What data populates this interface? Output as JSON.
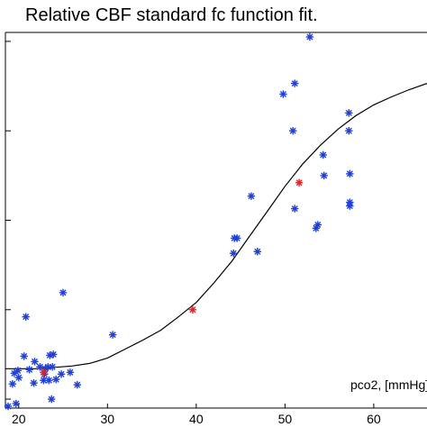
{
  "chart_data": {
    "type": "scatter",
    "title": "Relative CBF standard fc function fit.",
    "xlabel": "pco2, [mmHg]",
    "ylabel": "",
    "xlim": [
      18.5,
      66
    ],
    "ylim": [
      -0.1,
      4.1
    ],
    "x_ticks": [
      20,
      30,
      40,
      50,
      60
    ],
    "y_ticks": [
      0,
      1,
      2,
      3,
      4
    ],
    "grid": false,
    "colors": {
      "measured": "#1f3fd6",
      "highlight": "#e0202a",
      "fit": "#000000"
    },
    "series": [
      {
        "marker": "asterisk",
        "points": [
          [
            18.8,
            -0.08
          ],
          [
            19.7,
            -0.05
          ],
          [
            19.3,
            0.17
          ],
          [
            20.0,
            0.24
          ],
          [
            19.5,
            0.29
          ],
          [
            19.9,
            0.32
          ],
          [
            20.6,
            0.48
          ],
          [
            20.8,
            0.92
          ],
          [
            21.2,
            0.33
          ],
          [
            21.7,
            0.18
          ],
          [
            21.8,
            0.42
          ],
          [
            22.4,
            0.36
          ],
          [
            22.8,
            0.21
          ],
          [
            22.9,
            0.28
          ],
          [
            23.0,
            0.34
          ],
          [
            23.3,
            0.36
          ],
          [
            23.5,
            0.49
          ],
          [
            23.4,
            0.21
          ],
          [
            23.7,
            0.0
          ],
          [
            23.8,
            0.36
          ],
          [
            23.9,
            0.5
          ],
          [
            24.2,
            0.22
          ],
          [
            24.8,
            0.28
          ],
          [
            25.0,
            1.19
          ],
          [
            25.8,
            0.3
          ],
          [
            26.6,
            0.16
          ],
          [
            30.6,
            0.72
          ],
          [
            44.2,
            1.63
          ],
          [
            44.3,
            1.8
          ],
          [
            44.6,
            1.8
          ],
          [
            46.2,
            2.27
          ],
          [
            46.9,
            1.65
          ],
          [
            49.8,
            3.41
          ],
          [
            51.1,
            3.53
          ],
          [
            50.9,
            3.0
          ],
          [
            51.1,
            2.13
          ],
          [
            52.8,
            4.05
          ],
          [
            53.5,
            1.91
          ],
          [
            53.7,
            1.95
          ],
          [
            54.3,
            2.73
          ],
          [
            54.4,
            2.5
          ],
          [
            57.2,
            3.2
          ],
          [
            57.2,
            3.0
          ],
          [
            57.3,
            2.52
          ],
          [
            57.3,
            2.2
          ],
          [
            57.3,
            2.16
          ]
        ]
      },
      {
        "marker": "asterisk",
        "points": [
          [
            22.8,
            0.3
          ],
          [
            39.6,
            1.0
          ],
          [
            51.6,
            2.42
          ]
        ]
      },
      {
        "marker": "line",
        "points": [
          [
            18.5,
            0.34
          ],
          [
            22,
            0.34
          ],
          [
            26,
            0.37
          ],
          [
            28,
            0.4
          ],
          [
            30,
            0.46
          ],
          [
            32,
            0.56
          ],
          [
            34,
            0.66
          ],
          [
            36,
            0.77
          ],
          [
            38,
            0.92
          ],
          [
            40,
            1.08
          ],
          [
            42,
            1.3
          ],
          [
            44,
            1.54
          ],
          [
            46,
            1.82
          ],
          [
            48,
            2.1
          ],
          [
            50,
            2.38
          ],
          [
            52,
            2.63
          ],
          [
            54,
            2.84
          ],
          [
            56,
            3.02
          ],
          [
            58,
            3.17
          ],
          [
            60,
            3.29
          ],
          [
            62,
            3.38
          ],
          [
            64,
            3.46
          ],
          [
            66,
            3.53
          ]
        ]
      }
    ]
  }
}
